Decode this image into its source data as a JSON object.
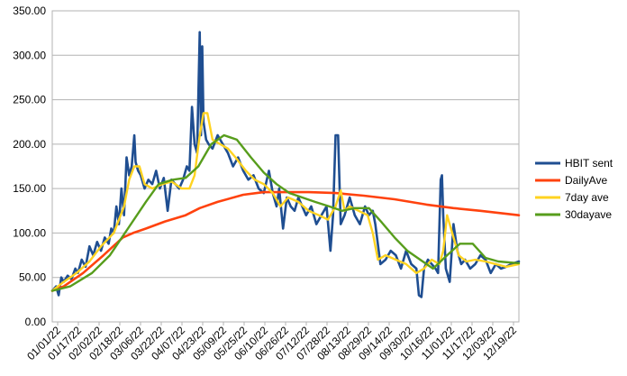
{
  "chart_data": {
    "type": "line",
    "title": "",
    "xlabel": "",
    "ylabel": "",
    "ylim": [
      0,
      350
    ],
    "y_ticks": [
      "0.00",
      "50.00",
      "100.00",
      "150.00",
      "200.00",
      "250.00",
      "300.00",
      "350.00"
    ],
    "x_ticks": [
      "01/01/22",
      "01/17/22",
      "02/02/22",
      "02/18/22",
      "03/06/22",
      "03/22/22",
      "04/07/22",
      "04/23/22",
      "05/09/22",
      "05/25/22",
      "06/10/22",
      "06/26/22",
      "07/12/22",
      "07/28/22",
      "08/13/22",
      "08/29/22",
      "09/14/22",
      "09/30/22",
      "10/16/22",
      "11/01/22",
      "11/17/22",
      "12/03/22",
      "12/19/22"
    ],
    "x_range": [
      "2022-01-01",
      "2022-12-31"
    ],
    "grid": "horizontal",
    "legend_position": "right",
    "series": [
      {
        "name": "HBIT sent",
        "color": "#1f4e91",
        "x": [
          "2022-01-01",
          "2022-01-04",
          "2022-01-06",
          "2022-01-08",
          "2022-01-10",
          "2022-01-13",
          "2022-01-16",
          "2022-01-19",
          "2022-01-21",
          "2022-01-24",
          "2022-01-27",
          "2022-01-30",
          "2022-02-02",
          "2022-02-05",
          "2022-02-08",
          "2022-02-11",
          "2022-02-14",
          "2022-02-16",
          "2022-02-18",
          "2022-02-20",
          "2022-02-22",
          "2022-02-24",
          "2022-02-26",
          "2022-02-28",
          "2022-03-02",
          "2022-03-04",
          "2022-03-06",
          "2022-03-07",
          "2022-03-09",
          "2022-03-11",
          "2022-03-14",
          "2022-03-17",
          "2022-03-20",
          "2022-03-23",
          "2022-03-26",
          "2022-03-29",
          "2022-04-01",
          "2022-04-04",
          "2022-04-07",
          "2022-04-10",
          "2022-04-13",
          "2022-04-16",
          "2022-04-18",
          "2022-04-20",
          "2022-04-22",
          "2022-04-24",
          "2022-04-26",
          "2022-04-27",
          "2022-04-28",
          "2022-04-29",
          "2022-05-01",
          "2022-05-03",
          "2022-05-06",
          "2022-05-10",
          "2022-05-14",
          "2022-05-18",
          "2022-05-22",
          "2022-05-26",
          "2022-05-30",
          "2022-06-03",
          "2022-06-07",
          "2022-06-11",
          "2022-06-15",
          "2022-06-19",
          "2022-06-22",
          "2022-06-25",
          "2022-06-27",
          "2022-06-30",
          "2022-07-03",
          "2022-07-06",
          "2022-07-09",
          "2022-07-12",
          "2022-07-15",
          "2022-07-18",
          "2022-07-22",
          "2022-07-26",
          "2022-07-30",
          "2022-08-03",
          "2022-08-06",
          "2022-08-08",
          "2022-08-10",
          "2022-08-12",
          "2022-08-14",
          "2022-08-17",
          "2022-08-21",
          "2022-08-25",
          "2022-08-29",
          "2022-09-02",
          "2022-09-05",
          "2022-09-08",
          "2022-09-10",
          "2022-09-14",
          "2022-09-18",
          "2022-09-22",
          "2022-09-26",
          "2022-09-30",
          "2022-10-04",
          "2022-10-08",
          "2022-10-12",
          "2022-10-14",
          "2022-10-16",
          "2022-10-18",
          "2022-10-21",
          "2022-10-24",
          "2022-10-27",
          "2022-10-29",
          "2022-10-31",
          "2022-11-01",
          "2022-11-02",
          "2022-11-04",
          "2022-11-07",
          "2022-11-10",
          "2022-11-13",
          "2022-11-16",
          "2022-11-19",
          "2022-11-23",
          "2022-11-27",
          "2022-12-01",
          "2022-12-05",
          "2022-12-09",
          "2022-12-13",
          "2022-12-17",
          "2022-12-21",
          "2022-12-25",
          "2022-12-31"
        ],
        "values": [
          35,
          40,
          30,
          50,
          45,
          52,
          48,
          60,
          55,
          70,
          62,
          85,
          75,
          90,
          80,
          95,
          88,
          105,
          100,
          130,
          110,
          150,
          120,
          185,
          165,
          175,
          210,
          180,
          170,
          165,
          150,
          160,
          155,
          170,
          150,
          162,
          125,
          160,
          155,
          150,
          160,
          175,
          170,
          242,
          200,
          190,
          326,
          210,
          310,
          225,
          205,
          200,
          195,
          210,
          200,
          190,
          175,
          185,
          170,
          160,
          165,
          150,
          145,
          170,
          145,
          130,
          150,
          105,
          140,
          130,
          125,
          140,
          130,
          120,
          130,
          110,
          120,
          130,
          80,
          120,
          210,
          210,
          110,
          120,
          140,
          120,
          110,
          130,
          120,
          125,
          110,
          65,
          70,
          80,
          75,
          60,
          80,
          65,
          60,
          30,
          28,
          60,
          70,
          65,
          60,
          55,
          160,
          165,
          120,
          60,
          45,
          110,
          80,
          65,
          70,
          60,
          65,
          75,
          70,
          55,
          65,
          60,
          62,
          65,
          68
        ]
      },
      {
        "name": "DailyAve",
        "color": "#ff420e",
        "x": [
          "2022-01-01",
          "2022-01-10",
          "2022-01-25",
          "2022-02-10",
          "2022-02-25",
          "2022-03-05",
          "2022-03-15",
          "2022-03-30",
          "2022-04-15",
          "2022-04-26",
          "2022-05-10",
          "2022-05-30",
          "2022-06-15",
          "2022-07-01",
          "2022-07-20",
          "2022-08-10",
          "2022-09-01",
          "2022-09-25",
          "2022-10-20",
          "2022-11-10",
          "2022-12-01",
          "2022-12-31"
        ],
        "values": [
          35,
          40,
          55,
          75,
          95,
          100,
          105,
          113,
          120,
          128,
          135,
          143,
          146,
          146,
          146,
          145,
          142,
          138,
          132,
          128,
          125,
          120
        ]
      },
      {
        "name": "7day ave",
        "color": "#ffd320",
        "x": [
          "2022-01-01",
          "2022-01-10",
          "2022-01-20",
          "2022-01-30",
          "2022-02-08",
          "2022-02-18",
          "2022-02-26",
          "2022-03-02",
          "2022-03-06",
          "2022-03-10",
          "2022-03-14",
          "2022-03-20",
          "2022-03-28",
          "2022-04-04",
          "2022-04-12",
          "2022-04-18",
          "2022-04-22",
          "2022-04-26",
          "2022-04-29",
          "2022-05-02",
          "2022-05-06",
          "2022-05-12",
          "2022-05-18",
          "2022-05-24",
          "2022-06-01",
          "2022-06-08",
          "2022-06-15",
          "2022-06-22",
          "2022-06-28",
          "2022-07-04",
          "2022-07-12",
          "2022-07-20",
          "2022-07-28",
          "2022-08-04",
          "2022-08-10",
          "2022-08-14",
          "2022-08-17",
          "2022-08-21",
          "2022-08-28",
          "2022-09-04",
          "2022-09-08",
          "2022-09-12",
          "2022-09-18",
          "2022-09-26",
          "2022-10-04",
          "2022-10-12",
          "2022-10-18",
          "2022-10-24",
          "2022-10-30",
          "2022-11-02",
          "2022-11-05",
          "2022-11-09",
          "2022-11-14",
          "2022-11-20",
          "2022-11-27",
          "2022-12-05",
          "2022-12-13",
          "2022-12-21",
          "2022-12-31"
        ],
        "values": [
          35,
          45,
          55,
          68,
          85,
          100,
          130,
          160,
          175,
          175,
          155,
          150,
          155,
          158,
          150,
          150,
          165,
          210,
          235,
          235,
          205,
          200,
          195,
          185,
          170,
          160,
          155,
          145,
          130,
          140,
          135,
          125,
          120,
          115,
          130,
          148,
          125,
          130,
          125,
          120,
          100,
          70,
          75,
          70,
          65,
          55,
          60,
          70,
          65,
          80,
          120,
          100,
          75,
          68,
          70,
          68,
          65,
          62,
          65
        ]
      },
      {
        "name": "30dayave",
        "color": "#579d1c",
        "x": [
          "2022-01-01",
          "2022-01-15",
          "2022-02-01",
          "2022-02-15",
          "2022-03-01",
          "2022-03-15",
          "2022-03-25",
          "2022-04-05",
          "2022-04-15",
          "2022-04-25",
          "2022-05-05",
          "2022-05-15",
          "2022-05-25",
          "2022-06-05",
          "2022-06-15",
          "2022-06-25",
          "2022-07-05",
          "2022-07-15",
          "2022-07-25",
          "2022-08-05",
          "2022-08-15",
          "2022-08-25",
          "2022-09-05",
          "2022-09-15",
          "2022-09-25",
          "2022-10-05",
          "2022-10-15",
          "2022-10-25",
          "2022-11-05",
          "2022-11-15",
          "2022-11-25",
          "2022-12-05",
          "2022-12-15",
          "2022-12-31"
        ],
        "values": [
          35,
          40,
          55,
          75,
          105,
          135,
          155,
          160,
          162,
          175,
          200,
          210,
          205,
          185,
          168,
          155,
          145,
          140,
          135,
          130,
          125,
          128,
          128,
          112,
          95,
          80,
          70,
          60,
          75,
          88,
          88,
          72,
          68,
          66
        ]
      }
    ]
  }
}
